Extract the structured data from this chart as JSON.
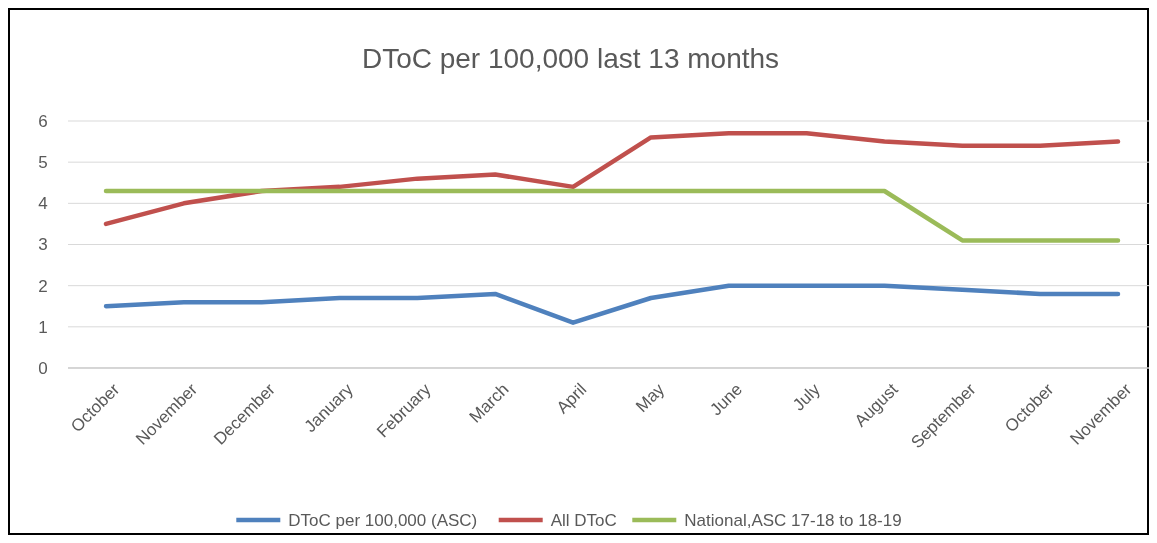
{
  "chart_data": {
    "type": "line",
    "title": "DToC per 100,000 last 13 months",
    "categories": [
      "October",
      "November",
      "December",
      "January",
      "February",
      "March",
      "April",
      "May",
      "June",
      "July",
      "August",
      "September",
      "October",
      "November"
    ],
    "series": [
      {
        "name": "DToC per 100,000 (ASC)",
        "color": "#4f81bd",
        "values": [
          1.5,
          1.6,
          1.6,
          1.7,
          1.7,
          1.8,
          1.1,
          1.7,
          2.0,
          2.0,
          2.0,
          1.9,
          1.8,
          1.8
        ]
      },
      {
        "name": "All DToC",
        "color": "#c0504d",
        "values": [
          3.5,
          4.0,
          4.3,
          4.4,
          4.6,
          4.7,
          4.4,
          5.6,
          5.7,
          5.7,
          5.5,
          5.4,
          5.4,
          5.5
        ]
      },
      {
        "name": "National,ASC 17-18 to 18-19",
        "color": "#9bbb59",
        "values": [
          4.3,
          4.3,
          4.3,
          4.3,
          4.3,
          4.3,
          4.3,
          4.3,
          4.3,
          4.3,
          4.3,
          3.1,
          3.1,
          3.1
        ]
      }
    ],
    "ylim": [
      0,
      6
    ],
    "yticks": [
      0,
      1,
      2,
      3,
      4,
      5,
      6
    ],
    "grid": "y",
    "legend": "bottom",
    "marker": "none",
    "line_style": "solid"
  }
}
